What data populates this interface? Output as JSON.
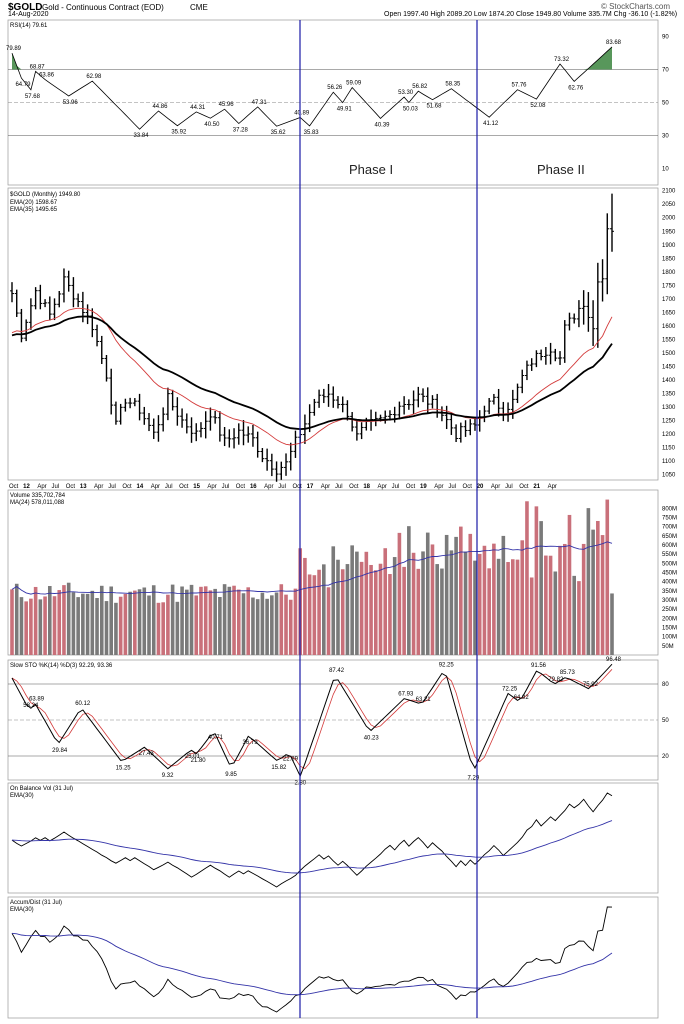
{
  "header": {
    "symbol": "$GOLD",
    "name": "Gold - Continuous Contract (EOD)",
    "exchange": "CME",
    "date": "14-Aug-2020",
    "watermark": "© StockCharts.com",
    "quote_line": "Open 1997.40  High 2089.20  Low 1874.20  Close 1949.80  Volume 335.7M  Chg -36.10 (-1.82%)"
  },
  "colors": {
    "price": "#000000",
    "ema20": "#d33a3a",
    "ema35": "#000000",
    "vol_up": "#c9707a",
    "vol_down": "#7a7a7a",
    "ma_line": "#3434a8",
    "phase_line": "#1a1aa6",
    "rsi_fill": "#2e7d32"
  },
  "annotations": {
    "phase1": "Phase I",
    "phase2": "Phase II"
  },
  "chart_data": [
    {
      "type": "line",
      "panel": "rsi",
      "title": "RSI(14) 79.61",
      "ylim": [
        0,
        100
      ],
      "yticks": [
        10,
        30,
        50,
        70,
        90
      ],
      "reference_lines": [
        30,
        50,
        70
      ],
      "labels": [
        {
          "t": 0,
          "v": 79.89,
          "text": "79.89"
        },
        {
          "t": 2,
          "v": 64.79,
          "text": "64.79"
        },
        {
          "t": 5,
          "v": 68.87,
          "text": "68.87"
        },
        {
          "t": 4,
          "v": 57.68,
          "text": "57.68"
        },
        {
          "t": 7,
          "v": 63.86,
          "text": "63.86"
        },
        {
          "t": 12,
          "v": 53.96,
          "text": "53.96"
        },
        {
          "t": 17,
          "v": 62.98,
          "text": "62.98"
        },
        {
          "t": 27,
          "v": 33.84,
          "text": "33.84"
        },
        {
          "t": 31,
          "v": 44.86,
          "text": "44.86"
        },
        {
          "t": 35,
          "v": 35.92,
          "text": "35.92"
        },
        {
          "t": 39,
          "v": 44.31,
          "text": "44.31"
        },
        {
          "t": 42,
          "v": 40.5,
          "text": "40.50"
        },
        {
          "t": 45,
          "v": 45.96,
          "text": "45.96"
        },
        {
          "t": 48,
          "v": 37.28,
          "text": "37.28"
        },
        {
          "t": 52,
          "v": 47.31,
          "text": "47.31"
        },
        {
          "t": 56,
          "v": 35.62,
          "text": "35.62"
        },
        {
          "t": 61,
          "v": 40.89,
          "text": "40.89"
        },
        {
          "t": 63,
          "v": 35.83,
          "text": "35.83"
        },
        {
          "t": 68,
          "v": 56.26,
          "text": "56.26"
        },
        {
          "t": 70,
          "v": 49.91,
          "text": "49.91"
        },
        {
          "t": 72,
          "v": 59.09,
          "text": "59.09"
        },
        {
          "t": 78,
          "v": 40.39,
          "text": "40.39"
        },
        {
          "t": 83,
          "v": 53.3,
          "text": "53.30"
        },
        {
          "t": 84,
          "v": 50.03,
          "text": "50.03"
        },
        {
          "t": 86,
          "v": 56.82,
          "text": "56.82"
        },
        {
          "t": 89,
          "v": 51.68,
          "text": "51.68"
        },
        {
          "t": 93,
          "v": 58.35,
          "text": "58.35"
        },
        {
          "t": 101,
          "v": 41.12,
          "text": "41.12"
        },
        {
          "t": 107,
          "v": 57.76,
          "text": "57.76"
        },
        {
          "t": 111,
          "v": 52.08,
          "text": "52.08"
        },
        {
          "t": 116,
          "v": 73.32,
          "text": "73.32"
        },
        {
          "t": 119,
          "v": 62.76,
          "text": "62.76"
        },
        {
          "t": 127,
          "v": 83.68,
          "text": "83.68"
        }
      ]
    },
    {
      "type": "bar",
      "panel": "price",
      "title": "$GOLD (Monthly) 1949.80",
      "legend": [
        "EMA(20) 1598.67",
        "EMA(35) 1495.65"
      ],
      "ylim": [
        1030,
        2110
      ],
      "yticks": [
        1050,
        1100,
        1150,
        1200,
        1250,
        1300,
        1350,
        1400,
        1450,
        1500,
        1550,
        1600,
        1650,
        1700,
        1750,
        1800,
        1850,
        1900,
        1950,
        2000,
        2050,
        2100
      ],
      "ohlc_summary": "Monthly OHLC bars Oct 2011 – Aug 2020: peak ~1920 (Sep 2011), low ~1045 (Dec 2015), high 2089.20 (Aug 2020)",
      "close_waypoints": [
        [
          0,
          1720
        ],
        [
          2,
          1570
        ],
        [
          5,
          1730
        ],
        [
          8,
          1640
        ],
        [
          11,
          1770
        ],
        [
          14,
          1690
        ],
        [
          17,
          1600
        ],
        [
          20,
          1420
        ],
        [
          22,
          1230
        ],
        [
          24,
          1330
        ],
        [
          27,
          1290
        ],
        [
          30,
          1200
        ],
        [
          33,
          1330
        ],
        [
          36,
          1250
        ],
        [
          39,
          1200
        ],
        [
          42,
          1280
        ],
        [
          45,
          1170
        ],
        [
          48,
          1210
        ],
        [
          51,
          1180
        ],
        [
          53,
          1120
        ],
        [
          56,
          1070
        ],
        [
          58,
          1090
        ],
        [
          60,
          1170
        ],
        [
          62,
          1240
        ],
        [
          64,
          1320
        ],
        [
          67,
          1350
        ],
        [
          69,
          1320
        ],
        [
          71,
          1280
        ],
        [
          73,
          1190
        ],
        [
          75,
          1230
        ],
        [
          78,
          1250
        ],
        [
          80,
          1270
        ],
        [
          82,
          1310
        ],
        [
          84,
          1320
        ],
        [
          86,
          1340
        ],
        [
          88,
          1320
        ],
        [
          90,
          1300
        ],
        [
          92,
          1250
        ],
        [
          94,
          1200
        ],
        [
          96,
          1215
        ],
        [
          98,
          1230
        ],
        [
          100,
          1300
        ],
        [
          102,
          1320
        ],
        [
          104,
          1290
        ],
        [
          106,
          1320
        ],
        [
          108,
          1410
        ],
        [
          110,
          1470
        ],
        [
          112,
          1500
        ],
        [
          114,
          1520
        ],
        [
          116,
          1480
        ],
        [
          117,
          1590
        ],
        [
          119,
          1640
        ],
        [
          121,
          1690
        ],
        [
          123,
          1590
        ],
        [
          124,
          1780
        ],
        [
          125,
          1780
        ],
        [
          126,
          1970
        ],
        [
          127,
          1949.8
        ]
      ],
      "x_ticks": [
        "Oct",
        "12",
        "Apr",
        "Jul",
        "Oct",
        "13",
        "Apr",
        "Jul",
        "Oct",
        "14",
        "Apr",
        "Jul",
        "Oct",
        "15",
        "Apr",
        "Jul",
        "Oct",
        "16",
        "Apr",
        "Jul",
        "Oct",
        "17",
        "Apr",
        "Jul",
        "Oct",
        "18",
        "Apr",
        "Jul",
        "Oct",
        "19",
        "Apr",
        "Jul",
        "Oct",
        "20",
        "Apr",
        "Jul",
        "Oct",
        "21",
        "Apr"
      ]
    },
    {
      "type": "bar",
      "panel": "volume",
      "title": "Volume 335,702,784",
      "legend": "MA(24) 578,011,088",
      "ylim": [
        0,
        900
      ],
      "unit": "M",
      "yticks": [
        50,
        100,
        150,
        200,
        250,
        300,
        350,
        400,
        450,
        500,
        550,
        600,
        650,
        700,
        750,
        800
      ],
      "notable": "Volume peaks ~870M in 2019–2020; last bar 335.7M"
    },
    {
      "type": "line",
      "panel": "stochastic",
      "title": "Slow STO %K(14) %D(3) 92.29, 93.36",
      "ylim": [
        0,
        100
      ],
      "reference_lines": [
        20,
        50,
        80
      ],
      "labels": [
        {
          "t": 4,
          "v": 63.89,
          "text": "63.89"
        },
        {
          "t": 3,
          "v": 58.24,
          "text": "58.24"
        },
        {
          "t": 8,
          "v": 29.84,
          "text": "29.84"
        },
        {
          "t": 12,
          "v": 60.12,
          "text": "60.12"
        },
        {
          "t": 19,
          "v": 15.25,
          "text": "15.25"
        },
        {
          "t": 23,
          "v": 27.43,
          "text": "27.43"
        },
        {
          "t": 27,
          "v": 9.32,
          "text": "9.32"
        },
        {
          "t": 31,
          "v": 25.01,
          "text": "25.01"
        },
        {
          "t": 32,
          "v": 21.8,
          "text": "21.80"
        },
        {
          "t": 35,
          "v": 40.71,
          "text": "40.71"
        },
        {
          "t": 38,
          "v": 9.85,
          "text": "9.85"
        },
        {
          "t": 41,
          "v": 36.79,
          "text": "36.79"
        },
        {
          "t": 46,
          "v": 15.82,
          "text": "15.82"
        },
        {
          "t": 48,
          "v": 22.89,
          "text": "22.89"
        },
        {
          "t": 50,
          "v": 2.8,
          "text": "2.80"
        },
        {
          "t": 56,
          "v": 87.42,
          "text": "87.42"
        },
        {
          "t": 62,
          "v": 40.23,
          "text": "40.23"
        },
        {
          "t": 68,
          "v": 67.93,
          "text": "67.93"
        },
        {
          "t": 71,
          "v": 63.21,
          "text": "63.21"
        },
        {
          "t": 75,
          "v": 92.25,
          "text": "92.25"
        },
        {
          "t": 80,
          "v": 7.29,
          "text": "7.29"
        },
        {
          "t": 86,
          "v": 72.25,
          "text": "72.25"
        },
        {
          "t": 88,
          "v": 64.92,
          "text": "64.92"
        },
        {
          "t": 91,
          "v": 91.56,
          "text": "91.56"
        },
        {
          "t": 94,
          "v": 79.82,
          "text": "79.82"
        },
        {
          "t": 96,
          "v": 85.73,
          "text": "85.73"
        },
        {
          "t": 100,
          "v": 75.92,
          "text": "75.92"
        },
        {
          "t": 104,
          "v": 96.48,
          "text": "96.48"
        }
      ]
    },
    {
      "type": "line",
      "panel": "obv",
      "title": "On Balance Vol (31 Jul)",
      "legend": "EMA(30)"
    },
    {
      "type": "line",
      "panel": "ad",
      "title": "Accum/Dist (31 Jul)",
      "legend": "EMA(30)"
    }
  ]
}
